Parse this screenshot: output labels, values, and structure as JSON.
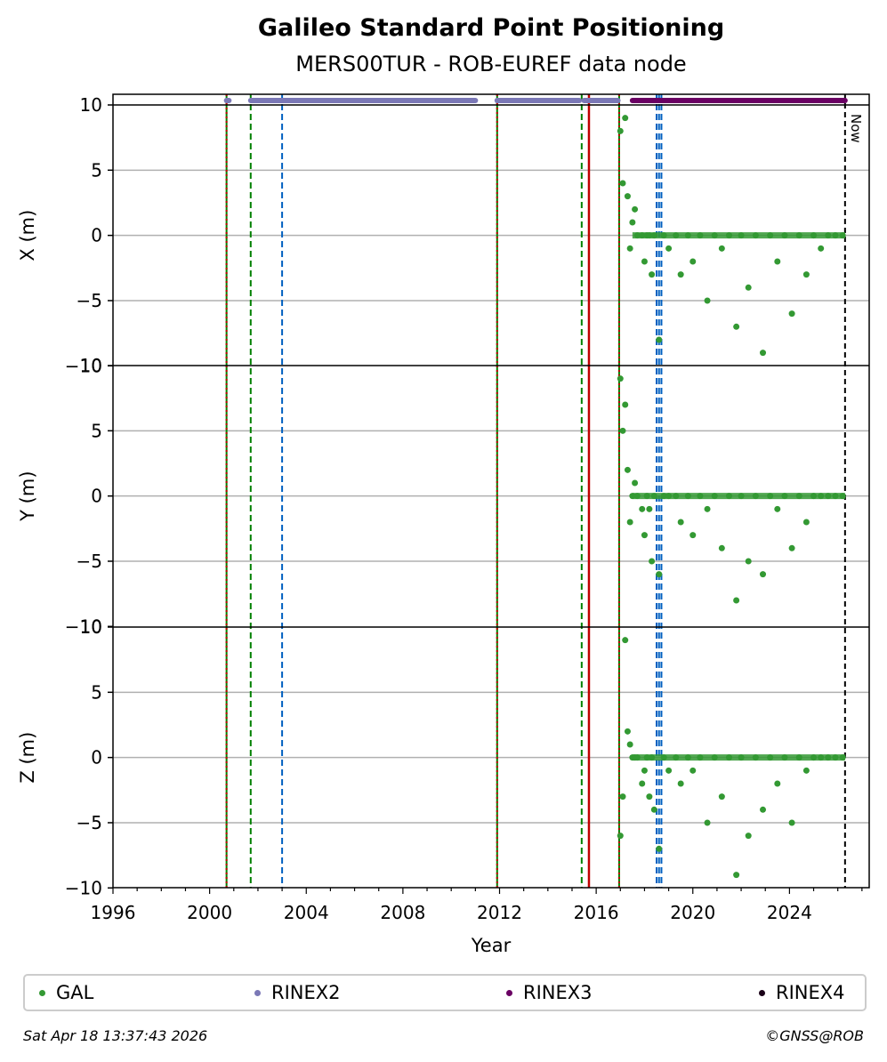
{
  "chart_data": {
    "type": "scatter",
    "title": "Galileo Standard Point Positioning",
    "subtitle": "MERS00TUR - ROB-EUREF data node",
    "xlabel": "Year",
    "xlim": [
      1996,
      2027.3
    ],
    "x_ticks": [
      "1996",
      "2000",
      "2004",
      "2008",
      "2012",
      "2016",
      "2020",
      "2024"
    ],
    "panels": [
      {
        "ylabel": "X (m)",
        "ylim": [
          -10,
          10
        ],
        "y_ticks": [
          "−10",
          "−5",
          "0",
          "5",
          "10"
        ]
      },
      {
        "ylabel": "Y (m)",
        "ylim": [
          -10,
          10
        ],
        "y_ticks": [
          "−10",
          "−5",
          "0",
          "5",
          "10"
        ]
      },
      {
        "ylabel": "Z (m)",
        "ylim": [
          -10,
          10
        ],
        "y_ticks": [
          "−10",
          "−5",
          "0",
          "5",
          "10"
        ]
      }
    ],
    "grid": true,
    "now_label": "Now",
    "now_year": 2026.3,
    "event_lines": [
      {
        "year": 2000.7,
        "style": "solid-dotted",
        "color": "#c00000"
      },
      {
        "year": 2001.7,
        "style": "dashed",
        "color": "#008000"
      },
      {
        "year": 2003.0,
        "style": "dashed",
        "color": "#0060c0"
      },
      {
        "year": 2011.9,
        "style": "solid-dotted",
        "color": "#c00000"
      },
      {
        "year": 2015.4,
        "style": "dashed",
        "color": "#008000"
      },
      {
        "year": 2015.7,
        "style": "solid",
        "color": "#c00000"
      },
      {
        "year": 2016.95,
        "style": "solid-dotted",
        "color": "#c00000"
      },
      {
        "year": 2018.5,
        "style": "dashed",
        "color": "#0060c0"
      },
      {
        "year": 2018.6,
        "style": "dashed",
        "color": "#0060c0"
      },
      {
        "year": 2018.7,
        "style": "dashed",
        "color": "#0060c0"
      }
    ],
    "rinex_bars": [
      {
        "name": "RINEX2",
        "color": "#7b78b6",
        "segments": [
          [
            2000.7,
            2000.8
          ],
          [
            2001.7,
            2011.0
          ],
          [
            2011.9,
            2015.3
          ],
          [
            2015.5,
            2016.9
          ]
        ]
      },
      {
        "name": "RINEX3",
        "color": "#6a0063",
        "segments": [
          [
            2017.5,
            2026.3
          ]
        ]
      }
    ],
    "series": [
      {
        "name": "GAL",
        "color": "#339933",
        "x": [
          2017.0,
          2017.1,
          2017.2,
          2017.3,
          2017.4,
          2017.5,
          2017.6,
          2017.7,
          2017.9,
          2018.0,
          2018.1,
          2018.2,
          2018.3,
          2018.4,
          2018.6,
          2018.8,
          2019.0,
          2019.3,
          2019.5,
          2019.8,
          2020.0,
          2020.3,
          2020.6,
          2020.9,
          2021.2,
          2021.5,
          2021.8,
          2022.0,
          2022.3,
          2022.6,
          2022.9,
          2023.2,
          2023.5,
          2023.8,
          2024.1,
          2024.4,
          2024.7,
          2025.0,
          2025.3,
          2025.6,
          2025.9,
          2026.2
        ],
        "x_offsets": [
          8,
          4,
          9,
          3,
          -1,
          1,
          2,
          0,
          0,
          -2,
          0,
          0,
          -3,
          0,
          -8,
          0,
          -1,
          0,
          -3,
          0,
          -2,
          0,
          -5,
          0,
          -1,
          0,
          -7,
          0,
          -4,
          0,
          -9,
          0,
          -2,
          0,
          -6,
          0,
          -3,
          0,
          -1,
          0,
          0,
          0
        ],
        "y_offsets": [
          9,
          5,
          7,
          2,
          -2,
          0,
          1,
          0,
          -1,
          -3,
          0,
          -1,
          -5,
          0,
          -6,
          0,
          0,
          0,
          -2,
          0,
          -3,
          0,
          -1,
          0,
          -4,
          0,
          -8,
          0,
          -5,
          0,
          -6,
          0,
          -1,
          0,
          -4,
          0,
          -2,
          0,
          0,
          0,
          0,
          0
        ],
        "z_offsets": [
          -6,
          -3,
          9,
          2,
          1,
          0,
          0,
          0,
          -2,
          -1,
          0,
          -3,
          0,
          -4,
          -7,
          0,
          -1,
          0,
          -2,
          0,
          -1,
          0,
          -5,
          0,
          -3,
          0,
          -9,
          0,
          -6,
          0,
          -4,
          0,
          -2,
          0,
          -5,
          0,
          -1,
          0,
          0,
          0,
          0,
          0
        ]
      }
    ],
    "legend": [
      {
        "name": "GAL",
        "color": "#339933"
      },
      {
        "name": "RINEX2",
        "color": "#7b78b6"
      },
      {
        "name": "RINEX3",
        "color": "#6a0063"
      },
      {
        "name": "RINEX4",
        "color": "#1a0018"
      }
    ]
  },
  "footer": {
    "timestamp": "Sat Apr 18 13:37:43 2026",
    "credit": "©GNSS@ROB"
  }
}
